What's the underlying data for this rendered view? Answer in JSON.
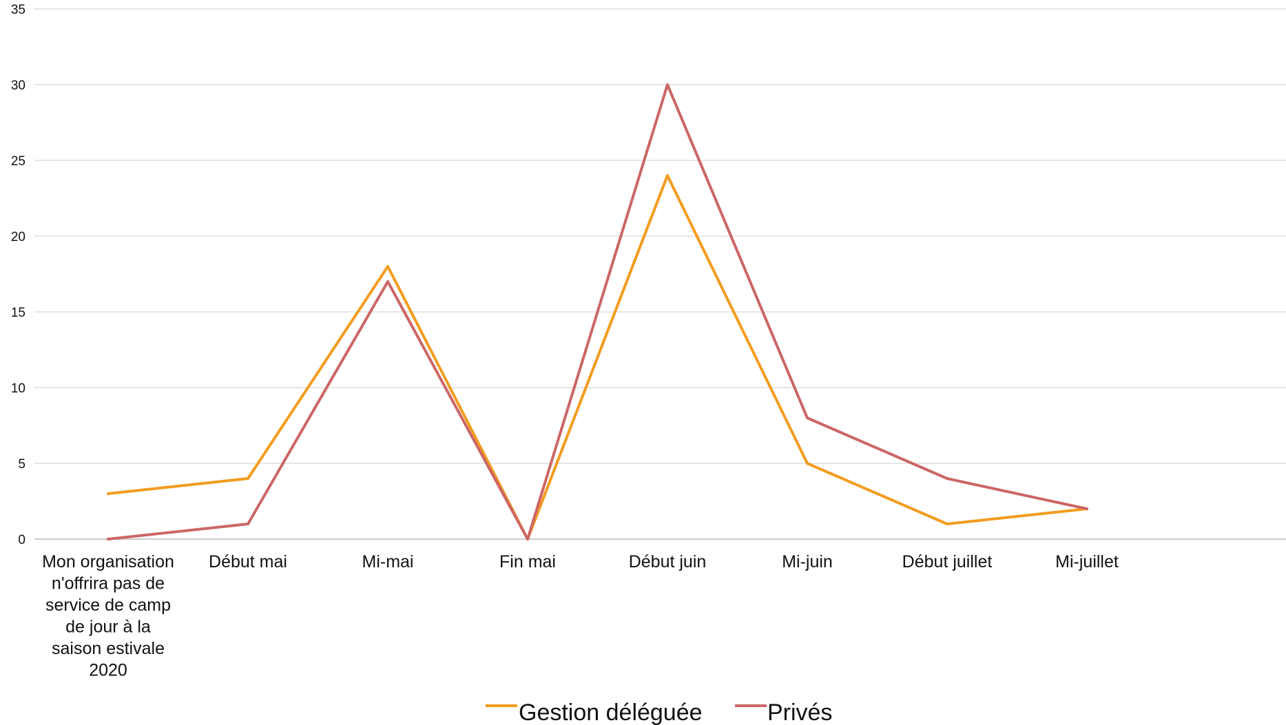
{
  "chart_data": {
    "type": "line",
    "title": "",
    "xlabel": "",
    "ylabel": "",
    "categories": [
      "Mon organisation n'offrira pas de service de camp de jour à la saison estivale 2020",
      "Début mai",
      "Mi-mai",
      "Fin mai",
      "Début juin",
      "Mi-juin",
      "Début juillet",
      "Mi-juillet"
    ],
    "ylim": [
      0,
      35
    ],
    "yticks": [
      "0",
      "5",
      "10",
      "15",
      "20",
      "25",
      "30",
      "35"
    ],
    "grid": true,
    "legend_position": "bottom-center",
    "series": [
      {
        "name": "Gestion déléguée",
        "color": "#f39c1e",
        "values": [
          3,
          4,
          18,
          0,
          24,
          5,
          1,
          2
        ]
      },
      {
        "name": "Privés",
        "color": "#cc6666",
        "values": [
          0,
          1,
          17,
          0,
          30,
          8,
          4,
          2
        ]
      }
    ]
  }
}
